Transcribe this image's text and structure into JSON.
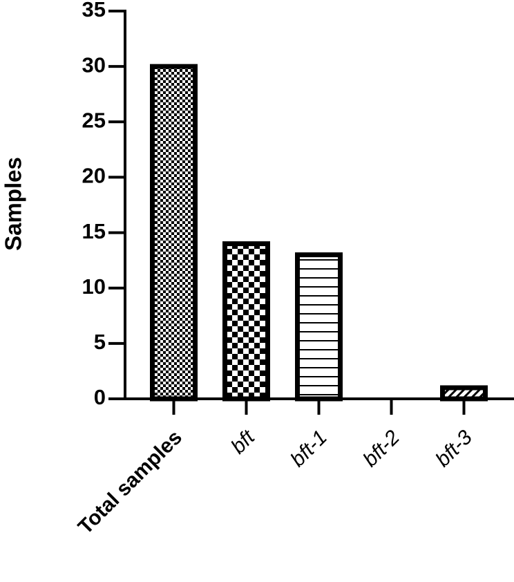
{
  "chart_data": {
    "type": "bar",
    "y_label": "Samples",
    "categories": [
      "Total samples",
      "bft",
      "bft-1",
      "bft-2",
      "bft-3"
    ],
    "values": [
      30,
      14,
      13,
      0,
      1
    ],
    "color": "#000000",
    "ylim": [
      0,
      35
    ],
    "yticks": [
      0,
      5,
      10,
      15,
      20,
      25,
      30,
      35
    ]
  }
}
